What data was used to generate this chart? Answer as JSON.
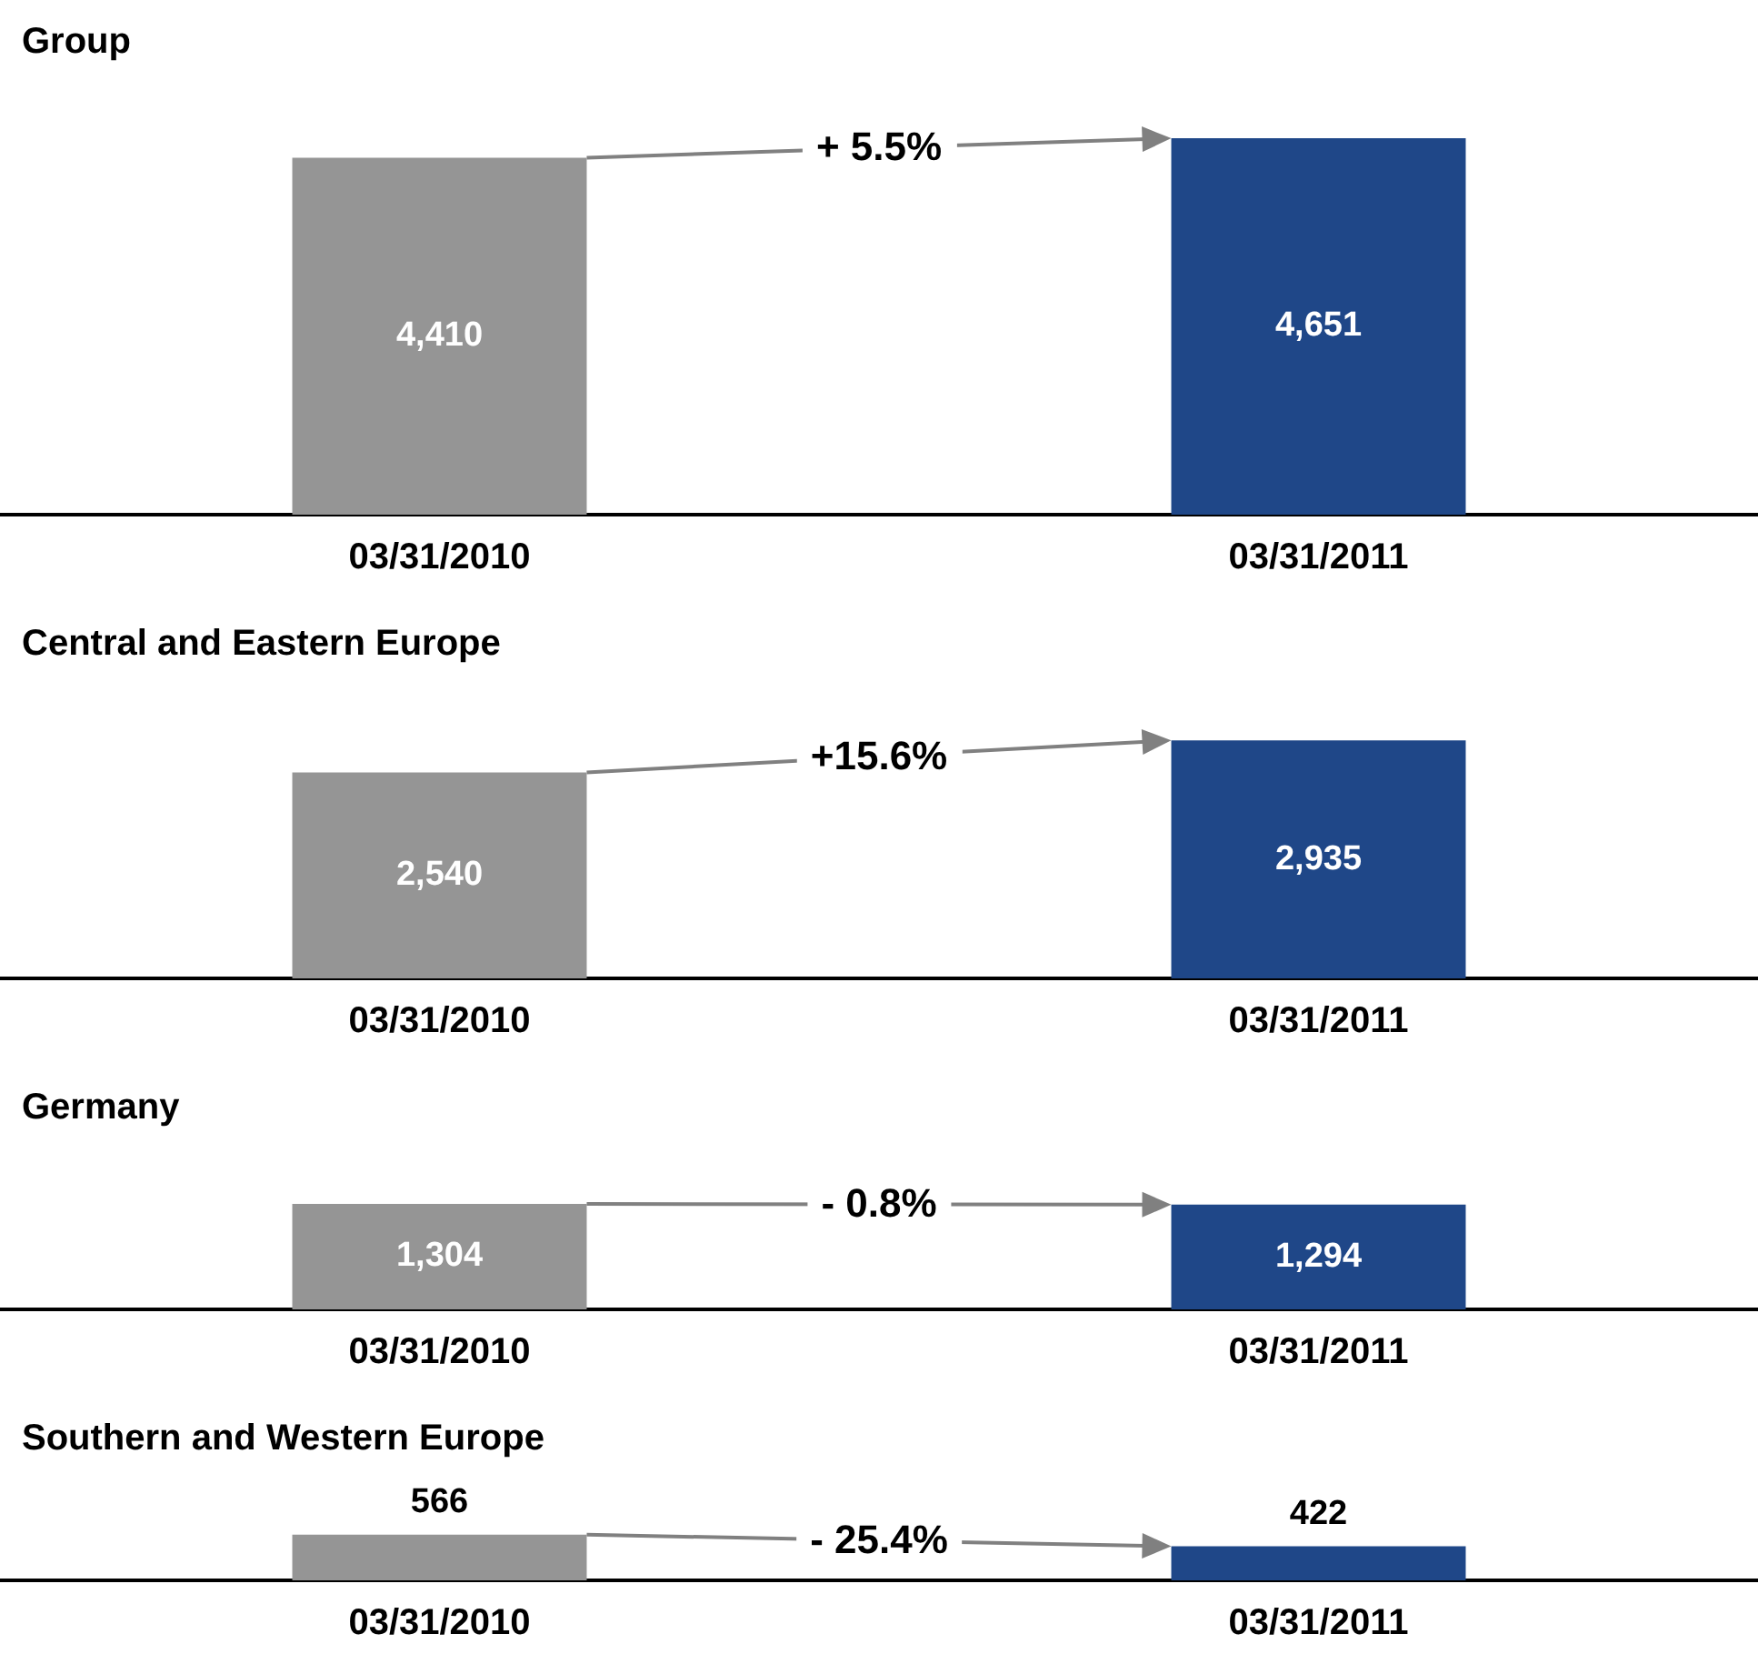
{
  "chart_data": [
    {
      "type": "bar",
      "title": "Group",
      "categories": [
        "03/31/2010",
        "03/31/2011"
      ],
      "values": [
        4410,
        4651
      ],
      "value_labels": [
        "4,410",
        "4,651"
      ],
      "colors": [
        "#959595",
        "#1f4788"
      ],
      "annotations": [
        "+ 5.5%"
      ]
    },
    {
      "type": "bar",
      "title": "Central and Eastern Europe",
      "categories": [
        "03/31/2010",
        "03/31/2011"
      ],
      "values": [
        2540,
        2935
      ],
      "value_labels": [
        "2,540",
        "2,935"
      ],
      "colors": [
        "#959595",
        "#1f4788"
      ],
      "annotations": [
        "+15.6%"
      ]
    },
    {
      "type": "bar",
      "title": "Germany",
      "categories": [
        "03/31/2010",
        "03/31/2011"
      ],
      "values": [
        1304,
        1294
      ],
      "value_labels": [
        "1,304",
        "1,294"
      ],
      "colors": [
        "#959595",
        "#1f4788"
      ],
      "annotations": [
        "- 0.8%"
      ]
    },
    {
      "type": "bar",
      "title": "Southern and Western Europe",
      "categories": [
        "03/31/2010",
        "03/31/2011"
      ],
      "values": [
        566,
        422
      ],
      "value_labels": [
        "566",
        "422"
      ],
      "colors": [
        "#959595",
        "#1f4788"
      ],
      "annotations": [
        "- 25.4%"
      ]
    }
  ]
}
